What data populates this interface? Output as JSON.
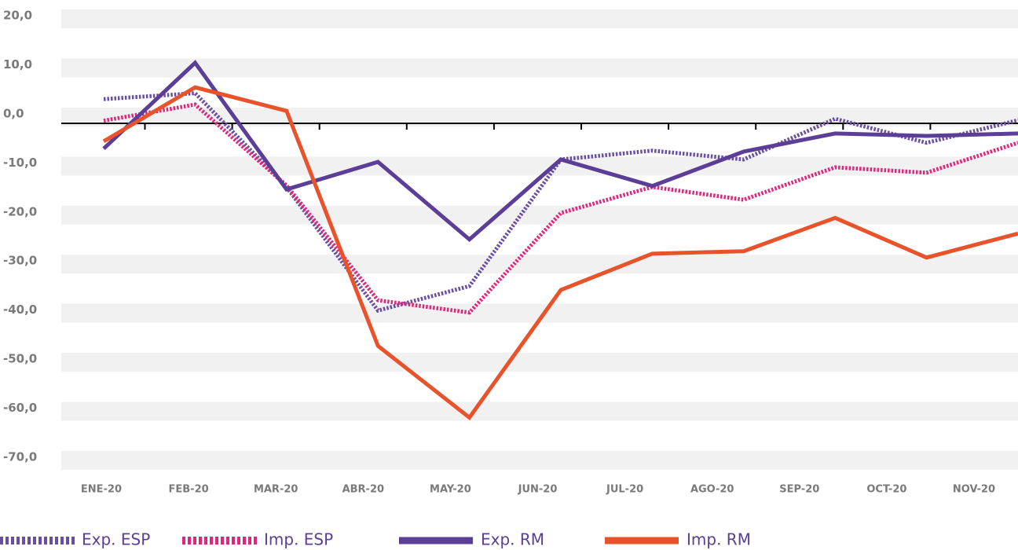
{
  "chart_data": {
    "type": "line",
    "categories": [
      "ENE-20",
      "FEB-20",
      "MAR-20",
      "ABR-20",
      "MAY-20",
      "JUN-20",
      "JUL-20",
      "AGO-20",
      "SEP-20",
      "OCT-20",
      "NOV-20"
    ],
    "series": [
      {
        "name": "Exp. ESP",
        "color": "#6a4fa0",
        "style": "dotted",
        "values": [
          3.0,
          4.2,
          -14.9,
          -40.1,
          -35.1,
          -9.3,
          -7.5,
          -9.3,
          -1.0,
          -5.9,
          -1.3
        ]
      },
      {
        "name": "Imp. ESP",
        "color": "#e0267a",
        "style": "dotted",
        "values": [
          -1.4,
          1.9,
          -14.6,
          -38.0,
          -40.5,
          -20.2,
          -14.9,
          -17.5,
          -10.9,
          -12.0,
          -5.9
        ]
      },
      {
        "name": "Exp. RM",
        "color": "#5b3e96",
        "style": "solid",
        "values": [
          -7.1,
          10.4,
          -15.4,
          -9.8,
          -25.6,
          -9.3,
          -14.7,
          -7.7,
          -4.0,
          -4.5,
          -4.0
        ]
      },
      {
        "name": "Imp. RM",
        "color": "#e9532c",
        "style": "solid",
        "values": [
          -5.6,
          5.4,
          0.6,
          -47.3,
          -61.9,
          -35.9,
          -28.5,
          -28.0,
          -21.2,
          -29.3,
          -24.4
        ]
      }
    ],
    "ylim": [
      -70,
      20
    ],
    "yticks": [
      {
        "value": 20,
        "label": "20,0"
      },
      {
        "value": 10,
        "label": "10,0"
      },
      {
        "value": 0,
        "label": "0,0"
      },
      {
        "value": -10,
        "label": "-10,0"
      },
      {
        "value": -20,
        "label": "-20,0"
      },
      {
        "value": -30,
        "label": "-30,0"
      },
      {
        "value": -40,
        "label": "-40,0"
      },
      {
        "value": -50,
        "label": "-50,0"
      },
      {
        "value": -60,
        "label": "-60,0"
      },
      {
        "value": -70,
        "label": "-70,0"
      }
    ],
    "grid": true
  }
}
